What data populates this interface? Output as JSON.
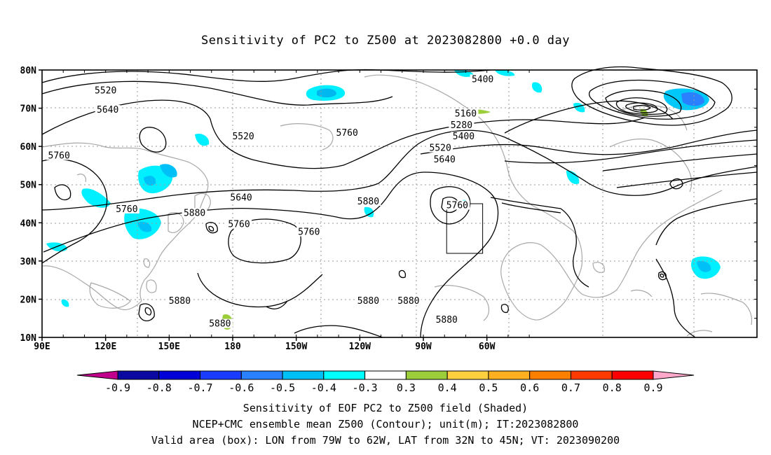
{
  "title": "Sensitivity of PC2 to Z500 at 2023082800 +0.0 day",
  "axes": {
    "lat_ticks": [
      "80N",
      "70N",
      "60N",
      "50N",
      "40N",
      "30N",
      "20N",
      "10N"
    ],
    "lon_ticks": [
      "90E",
      "120E",
      "150E",
      "180",
      "150W",
      "120W",
      "90W",
      "60W"
    ]
  },
  "contour_labels": [
    {
      "text": "5520",
      "lon": 120,
      "lat": 74
    },
    {
      "text": "5640",
      "lon": 121,
      "lat": 69
    },
    {
      "text": "5760",
      "lon": 98,
      "lat": 57
    },
    {
      "text": "5760",
      "lon": 130,
      "lat": 43
    },
    {
      "text": "5880",
      "lon": 162,
      "lat": 42
    },
    {
      "text": "5520",
      "lon": -175,
      "lat": 62
    },
    {
      "text": "5640",
      "lon": -176,
      "lat": 46
    },
    {
      "text": "5760",
      "lon": -177,
      "lat": 39
    },
    {
      "text": "5760",
      "lon": -144,
      "lat": 37
    },
    {
      "text": "5760",
      "lon": -126,
      "lat": 63
    },
    {
      "text": "5880",
      "lon": -116,
      "lat": 45
    },
    {
      "text": "5400",
      "lon": -62,
      "lat": 77
    },
    {
      "text": "5160",
      "lon": -70,
      "lat": 68
    },
    {
      "text": "5280",
      "lon": -72,
      "lat": 65
    },
    {
      "text": "5400",
      "lon": -71,
      "lat": 62
    },
    {
      "text": "5520",
      "lon": -82,
      "lat": 59
    },
    {
      "text": "5640",
      "lon": -80,
      "lat": 56
    },
    {
      "text": "5760",
      "lon": -74,
      "lat": 44
    },
    {
      "text": "5880",
      "lon": 155,
      "lat": 19
    },
    {
      "text": "5880",
      "lon": -186,
      "lat": 13
    },
    {
      "text": "5880",
      "lon": -116,
      "lat": 19
    },
    {
      "text": "5880",
      "lon": -97,
      "lat": 19
    },
    {
      "text": "5880",
      "lon": -79,
      "lat": 14
    }
  ],
  "colorbar": {
    "labels": [
      "-0.9",
      "-0.8",
      "-0.7",
      "-0.6",
      "-0.5",
      "-0.4",
      "-0.3",
      "0.3",
      "0.4",
      "0.5",
      "0.6",
      "0.7",
      "0.8",
      "0.9"
    ],
    "colors": [
      "#0a0aa0",
      "#0000d8",
      "#1a3cff",
      "#2a80ff",
      "#00c0f8",
      "#00ffff",
      "#ffffff",
      "#9cce3c",
      "#ffd040",
      "#ffb020",
      "#ff8000",
      "#ff3a00",
      "#ff0000"
    ],
    "low_extend_color": "#c0008c",
    "high_extend_color": "#ffa8cc"
  },
  "valid_box": {
    "lon_from": -79,
    "lon_to": -62,
    "lat_from": 32,
    "lat_to": 45
  },
  "captions": {
    "line1": "Sensitivity of EOF PC2 to Z500 field (Shaded)",
    "line2": "NCEP+CMC ensemble mean Z500 (Contour); unit(m); IT:2023082800",
    "line3": "Valid area (box): LON from 79W to 62W, LAT from 32N to 45N; VT: 2023090200"
  }
}
